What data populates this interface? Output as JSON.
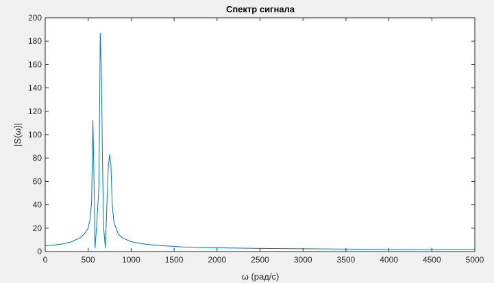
{
  "chart_data": {
    "type": "line",
    "title": "Спектр сигнала",
    "xlabel": "ω (рад/с)",
    "ylabel": "|S(ω)|",
    "xlim": [
      0,
      5000
    ],
    "ylim": [
      0,
      200
    ],
    "xticks": [
      "0",
      "500",
      "1000",
      "1500",
      "2000",
      "2500",
      "3000",
      "3500",
      "4000",
      "4500",
      "5000"
    ],
    "yticks": [
      "0",
      "20",
      "40",
      "60",
      "80",
      "100",
      "120",
      "140",
      "160",
      "180",
      "200"
    ],
    "grid": false,
    "legend": "none",
    "series": [
      {
        "color": "#0072bd",
        "x": [
          0,
          100,
          200,
          300,
          400,
          450,
          500,
          520,
          540,
          555,
          565,
          580,
          600,
          625,
          640,
          655,
          665,
          680,
          700,
          720,
          735,
          750,
          765,
          780,
          800,
          850,
          900,
          1000,
          1100,
          1200,
          1400,
          1600,
          1800,
          2000,
          2500,
          3000,
          3500,
          4000,
          4500,
          5000
        ],
        "y": [
          5,
          5.6,
          6.5,
          8.2,
          11.5,
          14.5,
          20,
          27,
          42,
          112,
          72,
          3,
          24,
          55,
          187,
          150,
          85,
          20,
          3,
          45,
          74,
          83,
          74,
          40,
          25,
          15,
          11.5,
          8.5,
          7,
          6,
          4.8,
          4,
          3.5,
          3.2,
          2.7,
          2.4,
          2.1,
          1.9,
          1.8,
          1.7
        ]
      }
    ]
  }
}
